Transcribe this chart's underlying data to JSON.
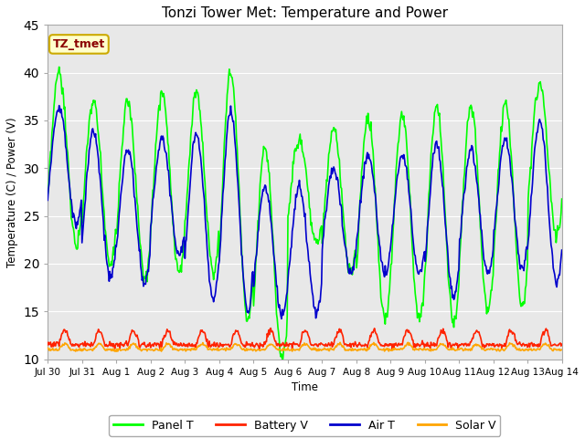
{
  "title": "Tonzi Tower Met: Temperature and Power",
  "ylabel": "Temperature (C) / Power (V)",
  "xlabel": "Time",
  "ylim": [
    10,
    45
  ],
  "yticks": [
    10,
    15,
    20,
    25,
    30,
    35,
    40,
    45
  ],
  "xtick_labels": [
    "Jul 30",
    "Jul 31",
    "Aug 1",
    "Aug 2",
    "Aug 3",
    "Aug 4",
    "Aug 5",
    "Aug 6",
    "Aug 7",
    "Aug 8",
    "Aug 9",
    "Aug 10",
    "Aug 11",
    "Aug 12",
    "Aug 13",
    "Aug 14"
  ],
  "annotation_text": "TZ_tmet",
  "annotation_color": "#8B0000",
  "annotation_bg": "#FFFFCC",
  "annotation_edge": "#CCAA00",
  "colors": {
    "Panel T": "#00FF00",
    "Battery V": "#FF2200",
    "Air T": "#0000CC",
    "Solar V": "#FFA500"
  },
  "background_color": "#E8E8E8",
  "fig_bg": "#FFFFFF",
  "panel_maxima": [
    40,
    37,
    37,
    38,
    38,
    40,
    32,
    33,
    34,
    35.5,
    35.5,
    36.5,
    36.5,
    37,
    39
  ],
  "panel_minima": [
    22,
    20,
    18.5,
    19,
    19,
    14,
    10,
    22,
    19,
    14,
    14,
    14,
    15,
    15.5,
    23
  ],
  "air_maxima": [
    36.5,
    34,
    32,
    33,
    33.5,
    36,
    28,
    28,
    30,
    31.5,
    31.5,
    32.5,
    32,
    33,
    35
  ],
  "air_minima": [
    24,
    18.5,
    18,
    21,
    16.5,
    15,
    14.5,
    15,
    19,
    19,
    19,
    16.5,
    19,
    19.5,
    18
  ],
  "batt_base": 11.5,
  "batt_spike": 1.5,
  "solar_base": 11.0,
  "solar_spike": 0.6
}
